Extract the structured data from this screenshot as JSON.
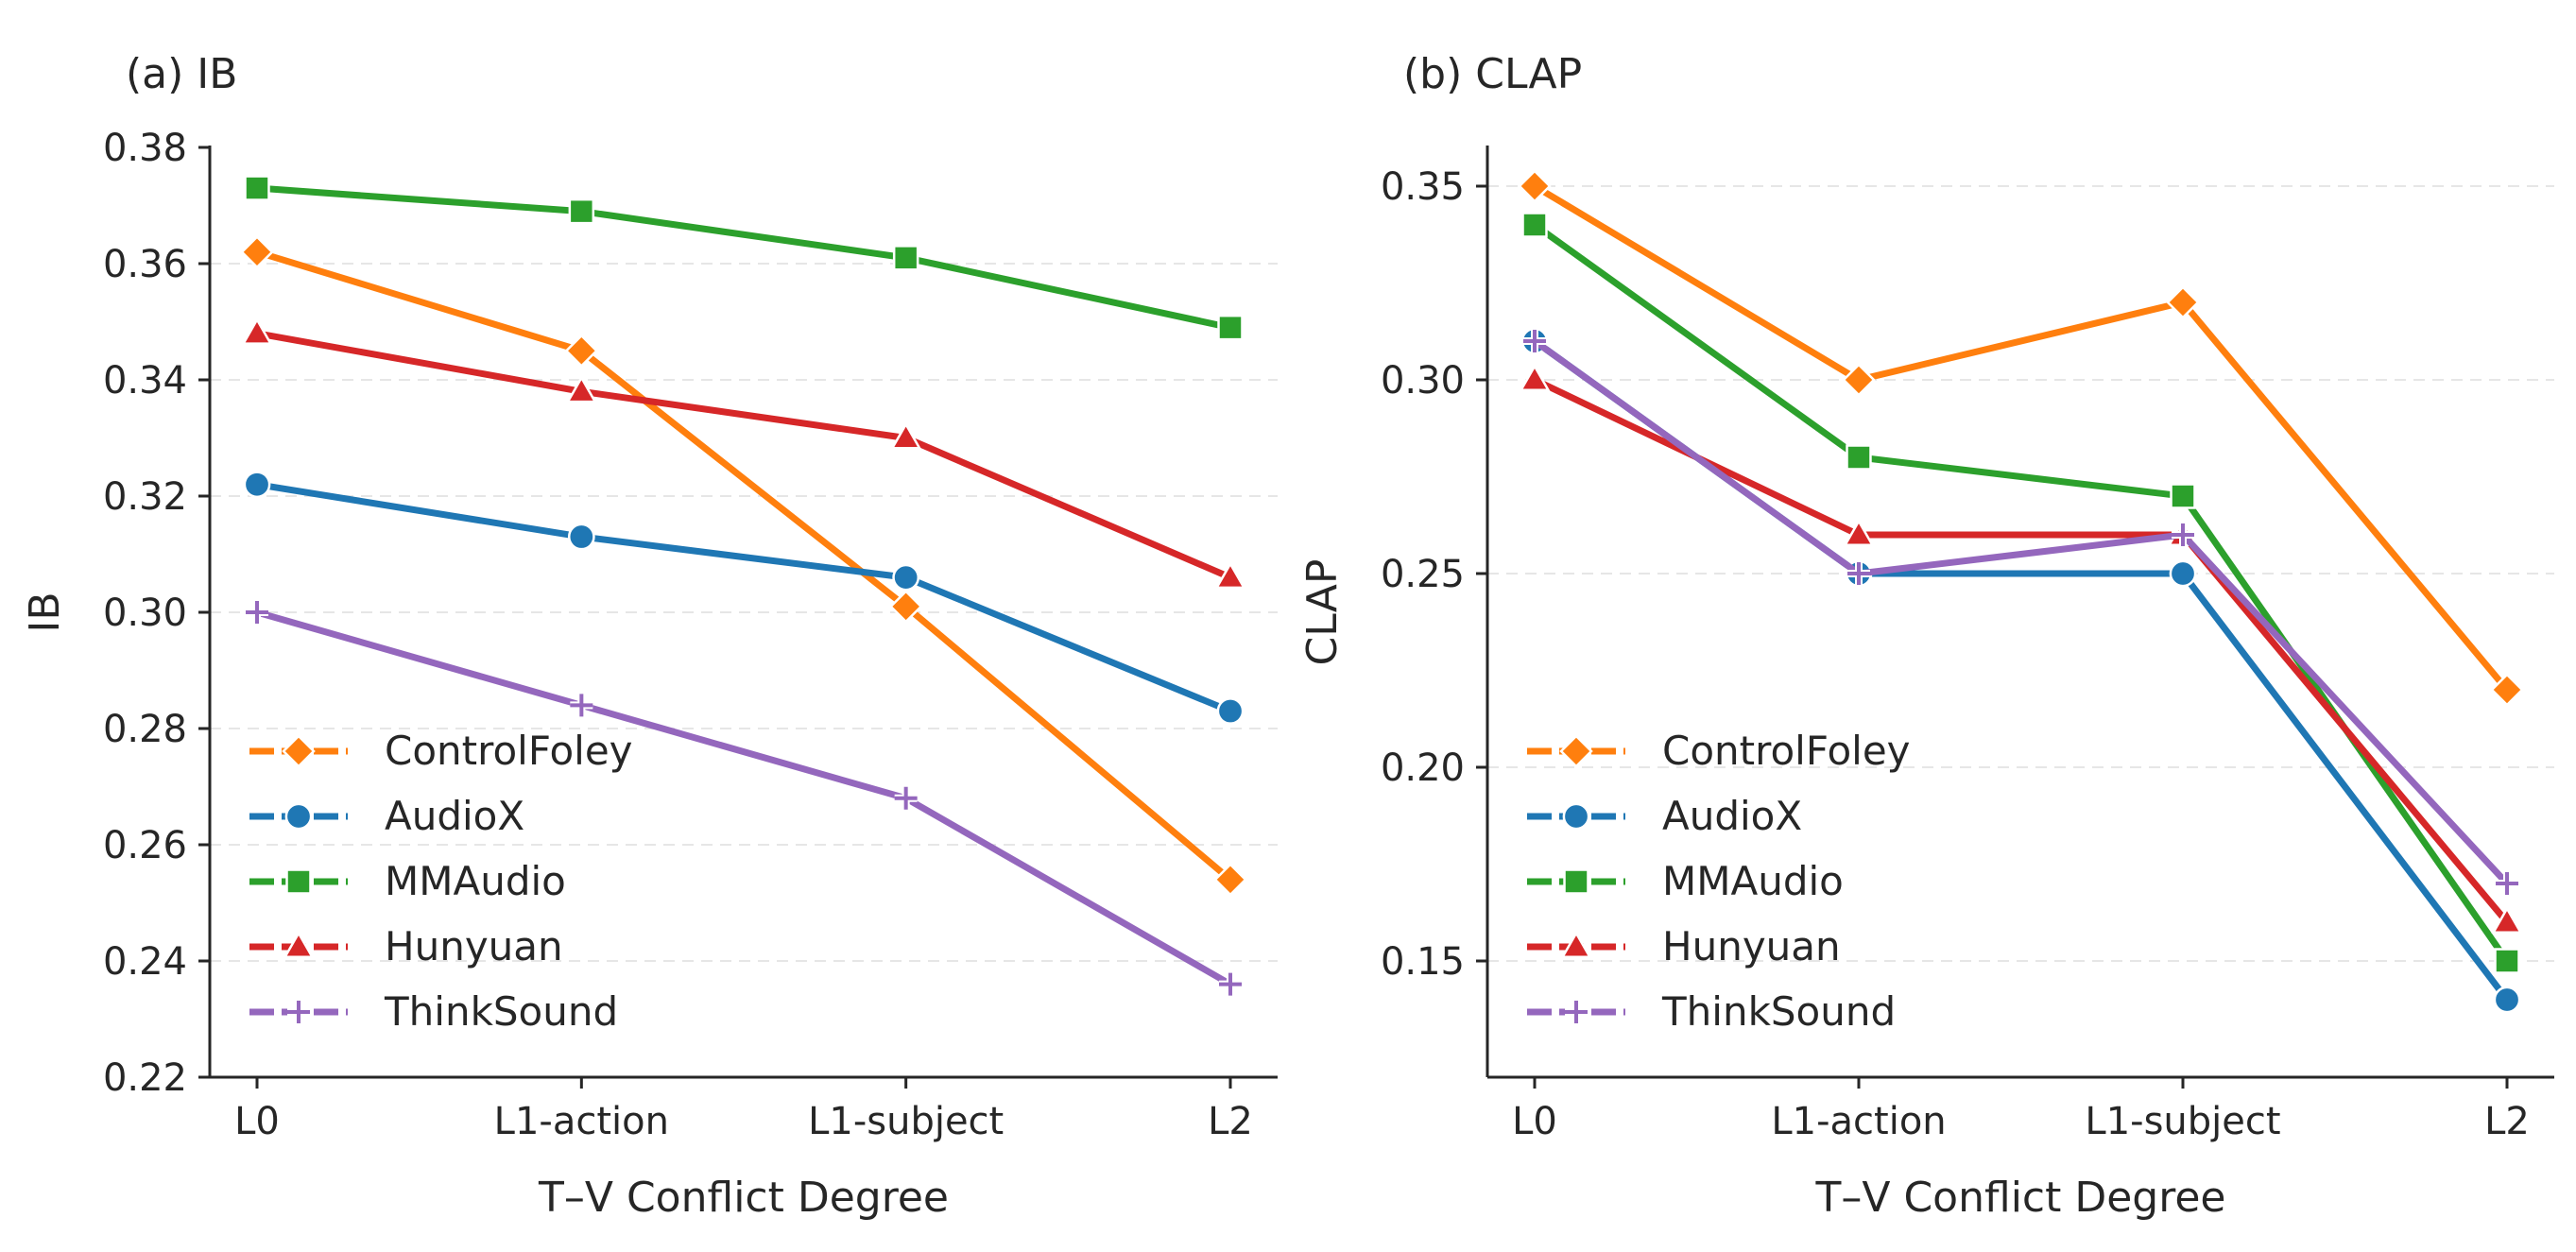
{
  "colors": {
    "ControlFoley": "#ff7f0e",
    "AudioX": "#1f77b4",
    "MMAudio": "#2ca02c",
    "Hunyuan": "#d62728",
    "ThinkSound": "#9467bd"
  },
  "chart_data": [
    {
      "type": "line",
      "title": "(a) IB",
      "xlabel": "T–V Conflict Degree",
      "ylabel": "IB",
      "categories": [
        "L0",
        "L1-action",
        "L1-subject",
        "L2"
      ],
      "ylim": [
        0.22,
        0.38
      ],
      "yticks": [
        0.22,
        0.24,
        0.26,
        0.28,
        0.3,
        0.32,
        0.34,
        0.36,
        0.38
      ],
      "ytick_labels": [
        "0.22",
        "0.24",
        "0.26",
        "0.28",
        "0.30",
        "0.32",
        "0.34",
        "0.36",
        "0.38"
      ],
      "grid": "horizontal dashed",
      "legend": "lower-left",
      "series": [
        {
          "name": "ControlFoley",
          "marker": "diamond",
          "values": [
            0.362,
            0.345,
            0.301,
            0.254
          ]
        },
        {
          "name": "AudioX",
          "marker": "circle",
          "values": [
            0.322,
            0.313,
            0.306,
            0.283
          ]
        },
        {
          "name": "MMAudio",
          "marker": "square",
          "values": [
            0.373,
            0.369,
            0.361,
            0.349
          ]
        },
        {
          "name": "Hunyuan",
          "marker": "triangle",
          "values": [
            0.348,
            0.338,
            0.33,
            0.306
          ]
        },
        {
          "name": "ThinkSound",
          "marker": "plus",
          "values": [
            0.3,
            0.284,
            0.268,
            0.236
          ]
        }
      ]
    },
    {
      "type": "line",
      "title": "(b) CLAP",
      "xlabel": "T–V Conflict Degree",
      "ylabel": "CLAP",
      "categories": [
        "L0",
        "L1-action",
        "L1-subject",
        "L2"
      ],
      "ylim": [
        0.12,
        0.36
      ],
      "yticks": [
        0.15,
        0.2,
        0.25,
        0.3,
        0.35
      ],
      "ytick_labels": [
        "0.15",
        "0.20",
        "0.25",
        "0.30",
        "0.35"
      ],
      "grid": "horizontal dashed",
      "legend": "lower-left",
      "series": [
        {
          "name": "ControlFoley",
          "marker": "diamond",
          "values": [
            0.35,
            0.3,
            0.32,
            0.22
          ]
        },
        {
          "name": "AudioX",
          "marker": "circle",
          "values": [
            0.31,
            0.25,
            0.25,
            0.14
          ]
        },
        {
          "name": "MMAudio",
          "marker": "square",
          "values": [
            0.34,
            0.28,
            0.27,
            0.15
          ]
        },
        {
          "name": "Hunyuan",
          "marker": "triangle",
          "values": [
            0.3,
            0.26,
            0.26,
            0.16
          ]
        },
        {
          "name": "ThinkSound",
          "marker": "plus",
          "values": [
            0.31,
            0.25,
            0.26,
            0.17
          ]
        }
      ]
    }
  ]
}
